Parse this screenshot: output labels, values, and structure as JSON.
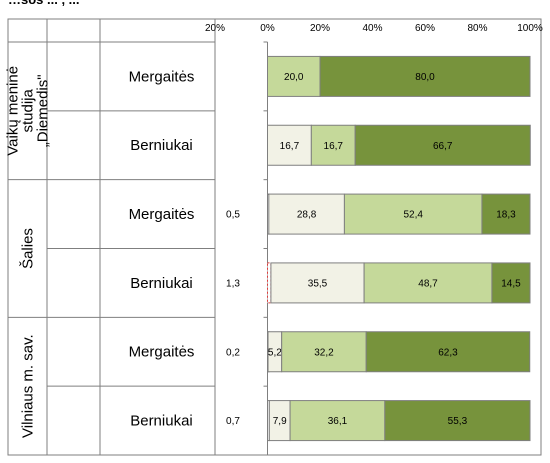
{
  "chart_data": {
    "type": "bar",
    "stacked": true,
    "orientation": "horizontal",
    "title_fragment": "…sos ... ,  ...",
    "x_ticks": [
      "20%",
      "0%",
      "20%",
      "40%",
      "60%",
      "80%",
      "100%"
    ],
    "xlim": [
      -20,
      100
    ],
    "colors": [
      "#f2f2e6",
      "#c5d99a",
      "#77933c"
    ],
    "groups": [
      {
        "label_lines": [
          "Vaikų meninė",
          "studija",
          "„Diemedis\""
        ]
      },
      {
        "label_lines": [
          "Šalies"
        ]
      },
      {
        "label_lines": [
          "Vilniaus m. sav."
        ]
      }
    ],
    "rows": [
      {
        "group": 0,
        "category": "Mergaitės",
        "side_value": "",
        "segments": [
          {
            "value": 20.0,
            "label": "20,0",
            "color_index": 1
          },
          {
            "value": 80.0,
            "label": "80,0",
            "color_index": 2
          }
        ]
      },
      {
        "group": 0,
        "category": "Berniukai",
        "side_value": "",
        "segments": [
          {
            "value": 16.7,
            "label": "16,7",
            "color_index": 0
          },
          {
            "value": 16.7,
            "label": "16,7",
            "color_index": 1
          },
          {
            "value": 66.7,
            "label": "66,7",
            "color_index": 2
          }
        ]
      },
      {
        "group": 1,
        "category": "Mergaitės",
        "side_value": "0,5",
        "lead": 0.5,
        "segments": [
          {
            "value": 28.8,
            "label": "28,8",
            "color_index": 0
          },
          {
            "value": 52.4,
            "label": "52,4",
            "color_index": 1
          },
          {
            "value": 18.3,
            "label": "18,3",
            "color_index": 2
          }
        ]
      },
      {
        "group": 1,
        "category": "Berniukai",
        "side_value": "1,3",
        "lead": 1.3,
        "segments": [
          {
            "value": 35.5,
            "label": "35,5",
            "color_index": 0
          },
          {
            "value": 48.7,
            "label": "48,7",
            "color_index": 1
          },
          {
            "value": 14.5,
            "label": "14,5",
            "color_index": 2
          }
        ]
      },
      {
        "group": 2,
        "category": "Mergaitės",
        "side_value": "0,2",
        "lead": 0.2,
        "segments": [
          {
            "value": 5.2,
            "label": "5,2",
            "color_index": 0
          },
          {
            "value": 32.2,
            "label": "32,2",
            "color_index": 1
          },
          {
            "value": 62.3,
            "label": "62,3",
            "color_index": 2
          }
        ]
      },
      {
        "group": 2,
        "category": "Berniukai",
        "side_value": "0,7",
        "lead": 0.7,
        "segments": [
          {
            "value": 7.9,
            "label": "7,9",
            "color_index": 0
          },
          {
            "value": 36.1,
            "label": "36,1",
            "color_index": 1
          },
          {
            "value": 55.3,
            "label": "55,3",
            "color_index": 2
          }
        ]
      }
    ]
  }
}
